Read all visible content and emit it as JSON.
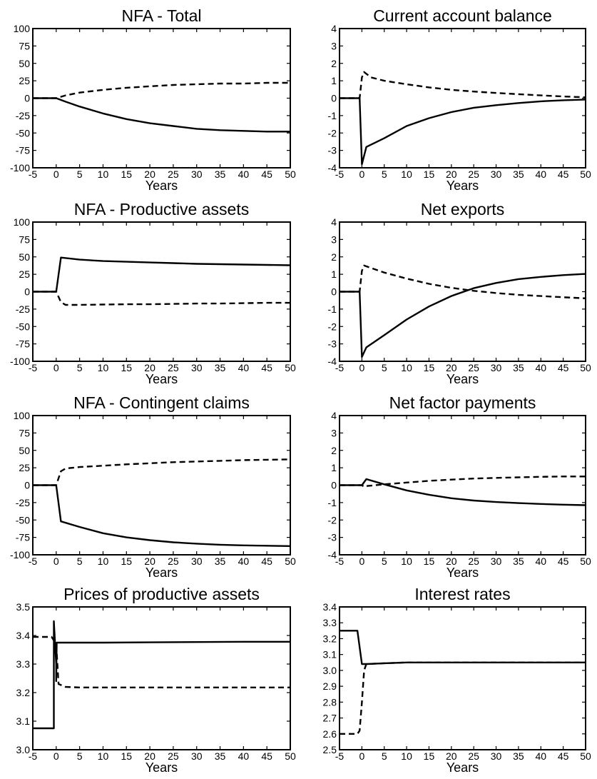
{
  "chart_data": [
    {
      "type": "line",
      "title": "NFA - Total",
      "xlabel": "Years",
      "xlim": [
        -5,
        50
      ],
      "ylim": [
        -100,
        100
      ],
      "xticks": [
        "-5",
        "0",
        "5",
        "10",
        "15",
        "20",
        "25",
        "30",
        "35",
        "40",
        "45",
        "50"
      ],
      "yticks": [
        "100",
        "75",
        "50",
        "25",
        "0",
        "-25",
        "-50",
        "-75",
        "-100"
      ],
      "series": [
        {
          "style": "solid",
          "x": [
            -5,
            0,
            2,
            5,
            10,
            15,
            20,
            25,
            30,
            35,
            40,
            45,
            50
          ],
          "y": [
            0,
            0,
            -5,
            -12,
            -22,
            -30,
            -36,
            -40,
            -44,
            -46,
            -47,
            -48,
            -48
          ]
        },
        {
          "style": "dashed",
          "x": [
            -5,
            0,
            2,
            5,
            10,
            15,
            20,
            25,
            30,
            35,
            40,
            45,
            50
          ],
          "y": [
            0,
            0,
            4,
            8,
            12,
            15,
            17,
            19,
            20,
            21,
            21,
            22,
            22
          ]
        }
      ]
    },
    {
      "type": "line",
      "title": "Current account balance",
      "xlabel": "Years",
      "xlim": [
        -5,
        50
      ],
      "ylim": [
        -4,
        4
      ],
      "xticks": [
        "-5",
        "0",
        "5",
        "10",
        "15",
        "20",
        "25",
        "30",
        "35",
        "40",
        "45",
        "50"
      ],
      "yticks": [
        "4",
        "3",
        "2",
        "1",
        "0",
        "-1",
        "-2",
        "-3",
        "-4"
      ],
      "series": [
        {
          "style": "solid",
          "x": [
            -5,
            -0.5,
            0,
            1,
            5,
            10,
            15,
            20,
            25,
            30,
            35,
            40,
            45,
            50
          ],
          "y": [
            0,
            0,
            -3.8,
            -2.8,
            -2.3,
            -1.6,
            -1.15,
            -0.8,
            -0.55,
            -0.4,
            -0.28,
            -0.18,
            -0.12,
            -0.08
          ]
        },
        {
          "style": "dashed",
          "x": [
            -5,
            -0.5,
            0,
            0.5,
            2,
            5,
            10,
            15,
            20,
            25,
            30,
            35,
            40,
            45,
            50
          ],
          "y": [
            0,
            0,
            1.2,
            1.5,
            1.2,
            1.0,
            0.8,
            0.62,
            0.48,
            0.38,
            0.3,
            0.23,
            0.16,
            0.1,
            0.05
          ]
        }
      ]
    },
    {
      "type": "line",
      "title": "NFA - Productive assets",
      "xlabel": "Years",
      "xlim": [
        -5,
        50
      ],
      "ylim": [
        -100,
        100
      ],
      "xticks": [
        "-5",
        "0",
        "5",
        "10",
        "15",
        "20",
        "25",
        "30",
        "35",
        "40",
        "45",
        "50"
      ],
      "yticks": [
        "100",
        "75",
        "50",
        "25",
        "0",
        "-25",
        "-50",
        "-75",
        "-100"
      ],
      "series": [
        {
          "style": "solid",
          "x": [
            -5,
            0,
            1,
            5,
            10,
            15,
            20,
            25,
            30,
            35,
            40,
            45,
            50
          ],
          "y": [
            0,
            0,
            49,
            46,
            44,
            43,
            42,
            41,
            40,
            39.5,
            39,
            38.5,
            38
          ]
        },
        {
          "style": "dashed",
          "x": [
            -5,
            0,
            1,
            2,
            5,
            10,
            15,
            20,
            25,
            30,
            35,
            40,
            45,
            50
          ],
          "y": [
            0,
            0,
            -15,
            -19,
            -19,
            -18.5,
            -18,
            -18,
            -17.5,
            -17,
            -17,
            -16.5,
            -16,
            -16
          ]
        }
      ]
    },
    {
      "type": "line",
      "title": "Net exports",
      "xlabel": "Years",
      "xlim": [
        -5,
        50
      ],
      "ylim": [
        -4,
        4
      ],
      "xticks": [
        "-5",
        "0",
        "5",
        "10",
        "15",
        "20",
        "25",
        "30",
        "35",
        "40",
        "45",
        "50"
      ],
      "yticks": [
        "4",
        "3",
        "2",
        "1",
        "0",
        "-1",
        "-2",
        "-3",
        "-4"
      ],
      "series": [
        {
          "style": "solid",
          "x": [
            -5,
            -0.5,
            0,
            1,
            5,
            10,
            15,
            20,
            25,
            30,
            35,
            40,
            45,
            50
          ],
          "y": [
            0,
            0,
            -3.75,
            -3.2,
            -2.5,
            -1.6,
            -0.85,
            -0.25,
            0.2,
            0.5,
            0.72,
            0.85,
            0.95,
            1.02
          ]
        },
        {
          "style": "dashed",
          "x": [
            -5,
            -0.5,
            0,
            0.5,
            5,
            10,
            15,
            20,
            25,
            30,
            35,
            40,
            45,
            50
          ],
          "y": [
            0,
            0,
            1.2,
            1.5,
            1.1,
            0.75,
            0.45,
            0.22,
            0.05,
            -0.08,
            -0.18,
            -0.25,
            -0.32,
            -0.38
          ]
        }
      ]
    },
    {
      "type": "line",
      "title": "NFA - Contingent claims",
      "xlabel": "Years",
      "xlim": [
        -5,
        50
      ],
      "ylim": [
        -100,
        100
      ],
      "xticks": [
        "-5",
        "0",
        "5",
        "10",
        "15",
        "20",
        "25",
        "30",
        "35",
        "40",
        "45",
        "50"
      ],
      "yticks": [
        "100",
        "75",
        "50",
        "25",
        "0",
        "-25",
        "-50",
        "-75",
        "-100"
      ],
      "series": [
        {
          "style": "solid",
          "x": [
            -5,
            0,
            1,
            5,
            10,
            15,
            20,
            25,
            30,
            35,
            40,
            45,
            50
          ],
          "y": [
            0,
            0,
            -52,
            -60,
            -69,
            -75,
            -79,
            -82,
            -84,
            -85.5,
            -86.5,
            -87,
            -87.5
          ]
        },
        {
          "style": "dashed",
          "x": [
            -5,
            0,
            1,
            2,
            5,
            10,
            15,
            20,
            25,
            30,
            35,
            40,
            45,
            50
          ],
          "y": [
            0,
            0,
            20,
            24,
            26,
            28,
            30,
            31.5,
            33,
            34,
            35,
            36,
            36.5,
            37
          ]
        }
      ]
    },
    {
      "type": "line",
      "title": "Net factor payments",
      "xlabel": "Years",
      "xlim": [
        -5,
        50
      ],
      "ylim": [
        -4,
        4
      ],
      "xticks": [
        "-5",
        "0",
        "5",
        "10",
        "15",
        "20",
        "25",
        "30",
        "35",
        "40",
        "45",
        "50"
      ],
      "yticks": [
        "4",
        "3",
        "2",
        "1",
        "0",
        "-1",
        "-2",
        "-3",
        "-4"
      ],
      "series": [
        {
          "style": "solid",
          "x": [
            -5,
            0,
            1,
            5,
            10,
            15,
            20,
            25,
            30,
            35,
            40,
            45,
            50
          ],
          "y": [
            0,
            0,
            0.35,
            0.05,
            -0.3,
            -0.55,
            -0.75,
            -0.88,
            -0.97,
            -1.03,
            -1.08,
            -1.12,
            -1.15
          ]
        },
        {
          "style": "dashed",
          "x": [
            -5,
            0,
            0.5,
            1,
            5,
            10,
            15,
            20,
            25,
            30,
            35,
            40,
            45,
            50
          ],
          "y": [
            0,
            0,
            -0.1,
            -0.05,
            0.05,
            0.15,
            0.25,
            0.32,
            0.38,
            0.42,
            0.45,
            0.48,
            0.5,
            0.5
          ]
        }
      ]
    },
    {
      "type": "line",
      "title": "Prices of productive assets",
      "xlabel": "Years",
      "xlim": [
        -5,
        50
      ],
      "ylim": [
        3.0,
        3.5
      ],
      "xticks": [
        "-5",
        "0",
        "5",
        "10",
        "15",
        "20",
        "25",
        "30",
        "35",
        "40",
        "45",
        "50"
      ],
      "yticks": [
        "3.5",
        "3.4",
        "3.3",
        "3.2",
        "3.1",
        "3.0"
      ],
      "series": [
        {
          "style": "solid",
          "x": [
            -5,
            -0.5,
            -0.5,
            0,
            0,
            0.1,
            10,
            20,
            30,
            40,
            50
          ],
          "y": [
            3.075,
            3.075,
            3.45,
            3.3,
            3.24,
            3.375,
            3.375,
            3.376,
            3.377,
            3.378,
            3.378
          ]
        },
        {
          "style": "dashed",
          "x": [
            -5,
            -1,
            0,
            0.5,
            2,
            5,
            10,
            20,
            30,
            40,
            50
          ],
          "y": [
            3.395,
            3.395,
            3.37,
            3.23,
            3.22,
            3.218,
            3.218,
            3.218,
            3.218,
            3.218,
            3.218
          ]
        }
      ]
    },
    {
      "type": "line",
      "title": "Interest rates",
      "xlabel": "Years",
      "xlim": [
        -5,
        50
      ],
      "ylim": [
        2.5,
        3.4
      ],
      "xticks": [
        "-5",
        "0",
        "5",
        "10",
        "15",
        "20",
        "25",
        "30",
        "35",
        "40",
        "45",
        "50"
      ],
      "yticks": [
        "3.4",
        "3.3",
        "3.2",
        "3.1",
        "3.0",
        "2.9",
        "2.8",
        "2.7",
        "2.6",
        "2.5"
      ],
      "series": [
        {
          "style": "solid",
          "x": [
            -5,
            -1,
            0,
            1,
            5,
            10,
            15,
            20,
            25,
            30,
            35,
            40,
            45,
            50
          ],
          "y": [
            3.25,
            3.25,
            3.04,
            3.04,
            3.045,
            3.05,
            3.05,
            3.05,
            3.05,
            3.05,
            3.05,
            3.05,
            3.05,
            3.05
          ]
        },
        {
          "style": "dashed",
          "x": [
            -5,
            -1,
            -0.5,
            0,
            0.5,
            1,
            5,
            10,
            20,
            30,
            40,
            50
          ],
          "y": [
            2.6,
            2.6,
            2.62,
            2.8,
            3.0,
            3.04,
            3.045,
            3.05,
            3.05,
            3.05,
            3.05,
            3.05
          ]
        }
      ]
    }
  ]
}
